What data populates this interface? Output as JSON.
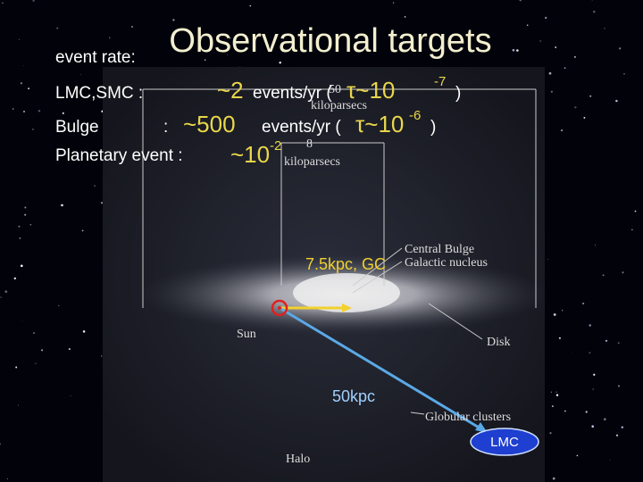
{
  "title": "Observational targets",
  "event_rate_label": "event rate:",
  "rows": [
    {
      "label": "LMC,SMC  :",
      "rate": "~2",
      "unit": "events/yr (",
      "tau": "τ~10",
      "exponent": "-7",
      "close": ")"
    },
    {
      "label": "Bulge",
      "colon": ":",
      "rate": "~500",
      "unit": "events/yr (",
      "tau": "τ~10",
      "exponent": "-6",
      "close": ")"
    },
    {
      "label": "Planetary event :",
      "rate": "~10",
      "exponent": "-2"
    }
  ],
  "diagram": {
    "halo_width": "50",
    "halo_unit": "kiloparsecs",
    "bulge_width": "8",
    "bulge_unit": "kiloparsecs",
    "central_bulge": "Central Bulge",
    "nucleus": "Galactic nucleus",
    "sun": "Sun",
    "disk": "Disk",
    "globular": "Globular clusters",
    "halo": "Halo"
  },
  "annotations": {
    "gc": "7.5kpc, GC",
    "lmc_distance": "50kpc",
    "lmc": "LMC"
  }
}
